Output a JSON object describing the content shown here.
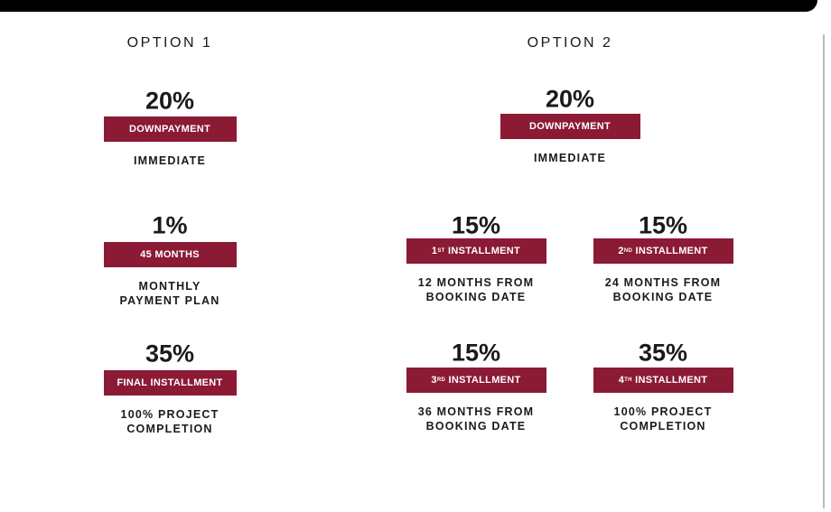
{
  "options": [
    {
      "title": "OPTION 1",
      "items": [
        {
          "percent": "20%",
          "label": "DOWNPAYMENT",
          "detail": [
            "IMMEDIATE"
          ]
        },
        {
          "percent": "1%",
          "label": "45 MONTHS",
          "detail": [
            "MONTHLY",
            "PAYMENT PLAN"
          ]
        },
        {
          "percent": "35%",
          "label": "FINAL INSTALLMENT",
          "detail": [
            "100% PROJECT",
            "COMPLETION"
          ]
        }
      ]
    },
    {
      "title": "OPTION 2",
      "items": [
        {
          "percent": "20%",
          "label": "DOWNPAYMENT",
          "detail": [
            "IMMEDIATE"
          ]
        },
        {
          "percent": "15%",
          "ordinal": "1",
          "suffix": "ST",
          "label": "INSTALLMENT",
          "detail": [
            "12 MONTHS FROM",
            "BOOKING DATE"
          ]
        },
        {
          "percent": "15%",
          "ordinal": "2",
          "suffix": "ND",
          "label": "INSTALLMENT",
          "detail": [
            "24 MONTHS FROM",
            "BOOKING DATE"
          ]
        },
        {
          "percent": "15%",
          "ordinal": "3",
          "suffix": "RD",
          "label": "INSTALLMENT",
          "detail": [
            "36 MONTHS FROM",
            "BOOKING DATE"
          ]
        },
        {
          "percent": "35%",
          "ordinal": "4",
          "suffix": "TH",
          "label": "INSTALLMENT",
          "detail": [
            "100% PROJECT",
            "COMPLETION"
          ]
        }
      ]
    }
  ]
}
